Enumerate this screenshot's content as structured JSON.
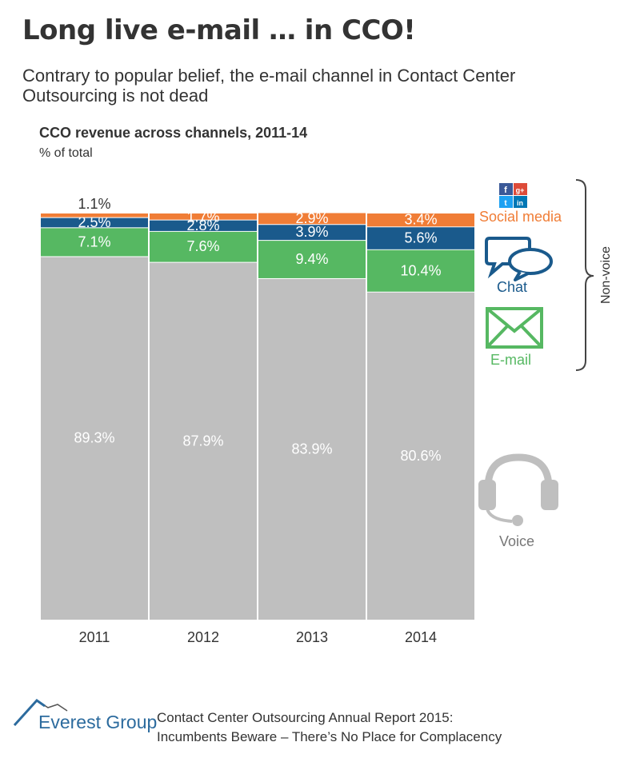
{
  "header": {
    "title": "Long live e-mail … in CCO!",
    "subtitle": "Contrary to popular belief, the e-mail channel in Contact Center Outsourcing is not dead"
  },
  "chart_data": {
    "type": "bar",
    "stacked": true,
    "normalized": true,
    "title": "CCO revenue across channels, 2011-14",
    "ylabel": "% of total",
    "categories": [
      "2011",
      "2012",
      "2013",
      "2014"
    ],
    "series": [
      {
        "name": "Voice",
        "color": "#bfbfbf",
        "values": [
          89.3,
          87.9,
          83.9,
          80.6
        ],
        "labels": [
          "89.3%",
          "87.9%",
          "83.9%",
          "80.6%"
        ]
      },
      {
        "name": "E-mail",
        "color": "#56b862",
        "values": [
          7.1,
          7.6,
          9.4,
          10.4
        ],
        "labels": [
          "7.1%",
          "7.6%",
          "9.4%",
          "10.4%"
        ]
      },
      {
        "name": "Chat",
        "color": "#1a5a8c",
        "values": [
          2.5,
          2.8,
          3.9,
          5.6
        ],
        "labels": [
          "2.5%",
          "2.8%",
          "3.9%",
          "5.6%"
        ]
      },
      {
        "name": "Social media",
        "color": "#f07d36",
        "values": [
          1.1,
          1.7,
          2.9,
          3.4
        ],
        "labels": [
          "1.1%",
          "1.7%",
          "2.9%",
          "3.4%"
        ]
      }
    ]
  },
  "legend": {
    "social_media": "Social media",
    "chat": "Chat",
    "email": "E-mail",
    "voice": "Voice",
    "non_voice": "Non-voice",
    "social_icons": [
      "f",
      "g+",
      "t",
      "in"
    ]
  },
  "footer": {
    "brand": "Everest Group",
    "report_line1": "Contact Center Outsourcing Annual Report 2015:",
    "report_line2": "Incumbents Beware – There’s No Place for Complacency"
  }
}
